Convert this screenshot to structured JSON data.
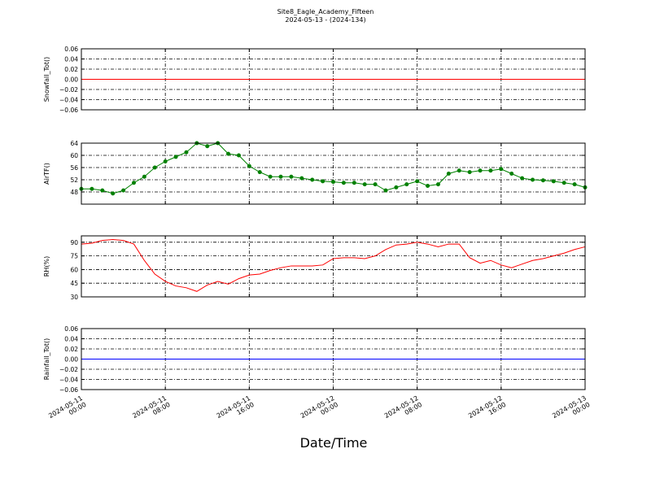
{
  "title": "Site8_Eagle_Academy_Fifteen",
  "subtitle": "2024-05-13 - (2024-134)",
  "xlabel": "Date/Time",
  "chart_data": [
    {
      "type": "line",
      "ylabel": "Snowfall_Tot()",
      "xlim": [
        "2024-05-11 00:00",
        "2024-05-13 00:00"
      ],
      "xticks": [
        "2024-05-11 00:00",
        "2024-05-11 08:00",
        "2024-05-11 16:00",
        "2024-05-12 00:00",
        "2024-05-12 08:00",
        "2024-05-12 16:00",
        "2024-05-13 00:00"
      ],
      "x": [
        "2024-05-11 00:00",
        "2024-05-13 00:00"
      ],
      "ylim": [
        -0.06,
        0.06
      ],
      "yticks": [
        {
          "value": 0.06,
          "label": "0.06"
        },
        {
          "value": 0.04,
          "label": "0.04"
        },
        {
          "value": 0.02,
          "label": "0.02"
        },
        {
          "value": 0,
          "label": "0.00"
        },
        {
          "value": -0.02,
          "label": "−0.02"
        },
        {
          "value": -0.04,
          "label": "−0.04"
        },
        {
          "value": -0.06,
          "label": "−0.06"
        }
      ],
      "grid": true,
      "series": [
        {
          "name": "Snowfall_Tot",
          "color": "#ff0000",
          "marker": false,
          "values": [
            0,
            0
          ]
        }
      ]
    },
    {
      "type": "line",
      "ylabel": "AirTF()",
      "xlim": [
        "2024-05-11 00:00",
        "2024-05-13 00:00"
      ],
      "xticks": [
        "2024-05-11 00:00",
        "2024-05-11 08:00",
        "2024-05-11 16:00",
        "2024-05-12 00:00",
        "2024-05-12 08:00",
        "2024-05-12 16:00",
        "2024-05-13 00:00"
      ],
      "x": [
        "2024-05-11 00:00",
        "2024-05-11 01:00",
        "2024-05-11 02:00",
        "2024-05-11 03:00",
        "2024-05-11 04:00",
        "2024-05-11 05:00",
        "2024-05-11 06:00",
        "2024-05-11 07:00",
        "2024-05-11 08:00",
        "2024-05-11 09:00",
        "2024-05-11 10:00",
        "2024-05-11 11:00",
        "2024-05-11 12:00",
        "2024-05-11 13:00",
        "2024-05-11 14:00",
        "2024-05-11 15:00",
        "2024-05-11 16:00",
        "2024-05-11 17:00",
        "2024-05-11 18:00",
        "2024-05-11 19:00",
        "2024-05-11 20:00",
        "2024-05-11 21:00",
        "2024-05-11 22:00",
        "2024-05-11 23:00",
        "2024-05-12 00:00",
        "2024-05-12 01:00",
        "2024-05-12 02:00",
        "2024-05-12 03:00",
        "2024-05-12 04:00",
        "2024-05-12 05:00",
        "2024-05-12 06:00",
        "2024-05-12 07:00",
        "2024-05-12 08:00",
        "2024-05-12 09:00",
        "2024-05-12 10:00",
        "2024-05-12 11:00",
        "2024-05-12 12:00",
        "2024-05-12 13:00",
        "2024-05-12 14:00",
        "2024-05-12 15:00",
        "2024-05-12 16:00",
        "2024-05-12 17:00",
        "2024-05-12 18:00",
        "2024-05-12 19:00",
        "2024-05-12 20:00",
        "2024-05-12 21:00",
        "2024-05-12 22:00",
        "2024-05-12 23:00",
        "2024-05-13 00:00"
      ],
      "ylim": [
        44,
        64
      ],
      "yticks": [
        48,
        52,
        56,
        60,
        64
      ],
      "grid": true,
      "series": [
        {
          "name": "AirTF",
          "color": "#008000",
          "marker": true,
          "values": [
            49,
            49,
            48.5,
            47.5,
            48.5,
            51,
            53,
            56,
            58,
            59.5,
            61,
            64,
            63,
            64,
            60.5,
            60,
            56.5,
            54.5,
            53,
            53,
            53,
            52.5,
            52,
            51.5,
            51.3,
            51,
            51,
            50.5,
            50.5,
            48.5,
            49.5,
            50.5,
            51.5,
            50,
            50.5,
            54,
            55,
            54.5,
            55,
            55,
            55.5,
            54,
            52.5,
            52,
            51.8,
            51.5,
            51,
            50.5,
            49.5
          ]
        }
      ]
    },
    {
      "type": "line",
      "ylabel": "RH(%)",
      "xlim": [
        "2024-05-11 00:00",
        "2024-05-13 00:00"
      ],
      "xticks": [
        "2024-05-11 00:00",
        "2024-05-11 08:00",
        "2024-05-11 16:00",
        "2024-05-12 00:00",
        "2024-05-12 08:00",
        "2024-05-12 16:00",
        "2024-05-13 00:00"
      ],
      "x": [
        "2024-05-11 00:00",
        "2024-05-11 01:00",
        "2024-05-11 02:00",
        "2024-05-11 03:00",
        "2024-05-11 04:00",
        "2024-05-11 05:00",
        "2024-05-11 06:00",
        "2024-05-11 07:00",
        "2024-05-11 08:00",
        "2024-05-11 09:00",
        "2024-05-11 10:00",
        "2024-05-11 11:00",
        "2024-05-11 12:00",
        "2024-05-11 13:00",
        "2024-05-11 14:00",
        "2024-05-11 15:00",
        "2024-05-11 16:00",
        "2024-05-11 17:00",
        "2024-05-11 18:00",
        "2024-05-11 19:00",
        "2024-05-11 20:00",
        "2024-05-11 21:00",
        "2024-05-11 22:00",
        "2024-05-11 23:00",
        "2024-05-12 00:00",
        "2024-05-12 01:00",
        "2024-05-12 02:00",
        "2024-05-12 03:00",
        "2024-05-12 04:00",
        "2024-05-12 05:00",
        "2024-05-12 06:00",
        "2024-05-12 07:00",
        "2024-05-12 08:00",
        "2024-05-12 09:00",
        "2024-05-12 10:00",
        "2024-05-12 11:00",
        "2024-05-12 12:00",
        "2024-05-12 13:00",
        "2024-05-12 14:00",
        "2024-05-12 15:00",
        "2024-05-12 16:00",
        "2024-05-12 17:00",
        "2024-05-12 18:00",
        "2024-05-12 19:00",
        "2024-05-12 20:00",
        "2024-05-12 21:00",
        "2024-05-12 22:00",
        "2024-05-12 23:00",
        "2024-05-13 00:00"
      ],
      "ylim": [
        30,
        97
      ],
      "yticks": [
        30,
        45,
        60,
        75,
        90
      ],
      "grid": true,
      "series": [
        {
          "name": "RH",
          "color": "#ff0000",
          "marker": false,
          "values": [
            88,
            89,
            92,
            93,
            92,
            88,
            70,
            55,
            47,
            42,
            40,
            36,
            43,
            47,
            44,
            50,
            54,
            55,
            59,
            62,
            64,
            64,
            64,
            65,
            72,
            73,
            73,
            72,
            75,
            82,
            87,
            88,
            90,
            88,
            85,
            88,
            88,
            73,
            67,
            70,
            65,
            62,
            66,
            70,
            72,
            75,
            78,
            82,
            85
          ]
        }
      ]
    },
    {
      "type": "line",
      "ylabel": "Rainfall_Tot()",
      "xlim": [
        "2024-05-11 00:00",
        "2024-05-13 00:00"
      ],
      "xticks": [
        "2024-05-11 00:00",
        "2024-05-11 08:00",
        "2024-05-11 16:00",
        "2024-05-12 00:00",
        "2024-05-12 08:00",
        "2024-05-12 16:00",
        "2024-05-13 00:00"
      ],
      "x": [
        "2024-05-11 00:00",
        "2024-05-13 00:00"
      ],
      "ylim": [
        -0.06,
        0.06
      ],
      "yticks": [
        {
          "value": 0.06,
          "label": "0.06"
        },
        {
          "value": 0.04,
          "label": "0.04"
        },
        {
          "value": 0.02,
          "label": "0.02"
        },
        {
          "value": 0,
          "label": "0.00"
        },
        {
          "value": -0.02,
          "label": "−0.02"
        },
        {
          "value": -0.04,
          "label": "−0.04"
        },
        {
          "value": -0.06,
          "label": "−0.06"
        }
      ],
      "grid": true,
      "xtick_labels": true,
      "series": [
        {
          "name": "Rainfall_Tot",
          "color": "#0000ff",
          "marker": false,
          "values": [
            0,
            0
          ]
        }
      ]
    }
  ]
}
